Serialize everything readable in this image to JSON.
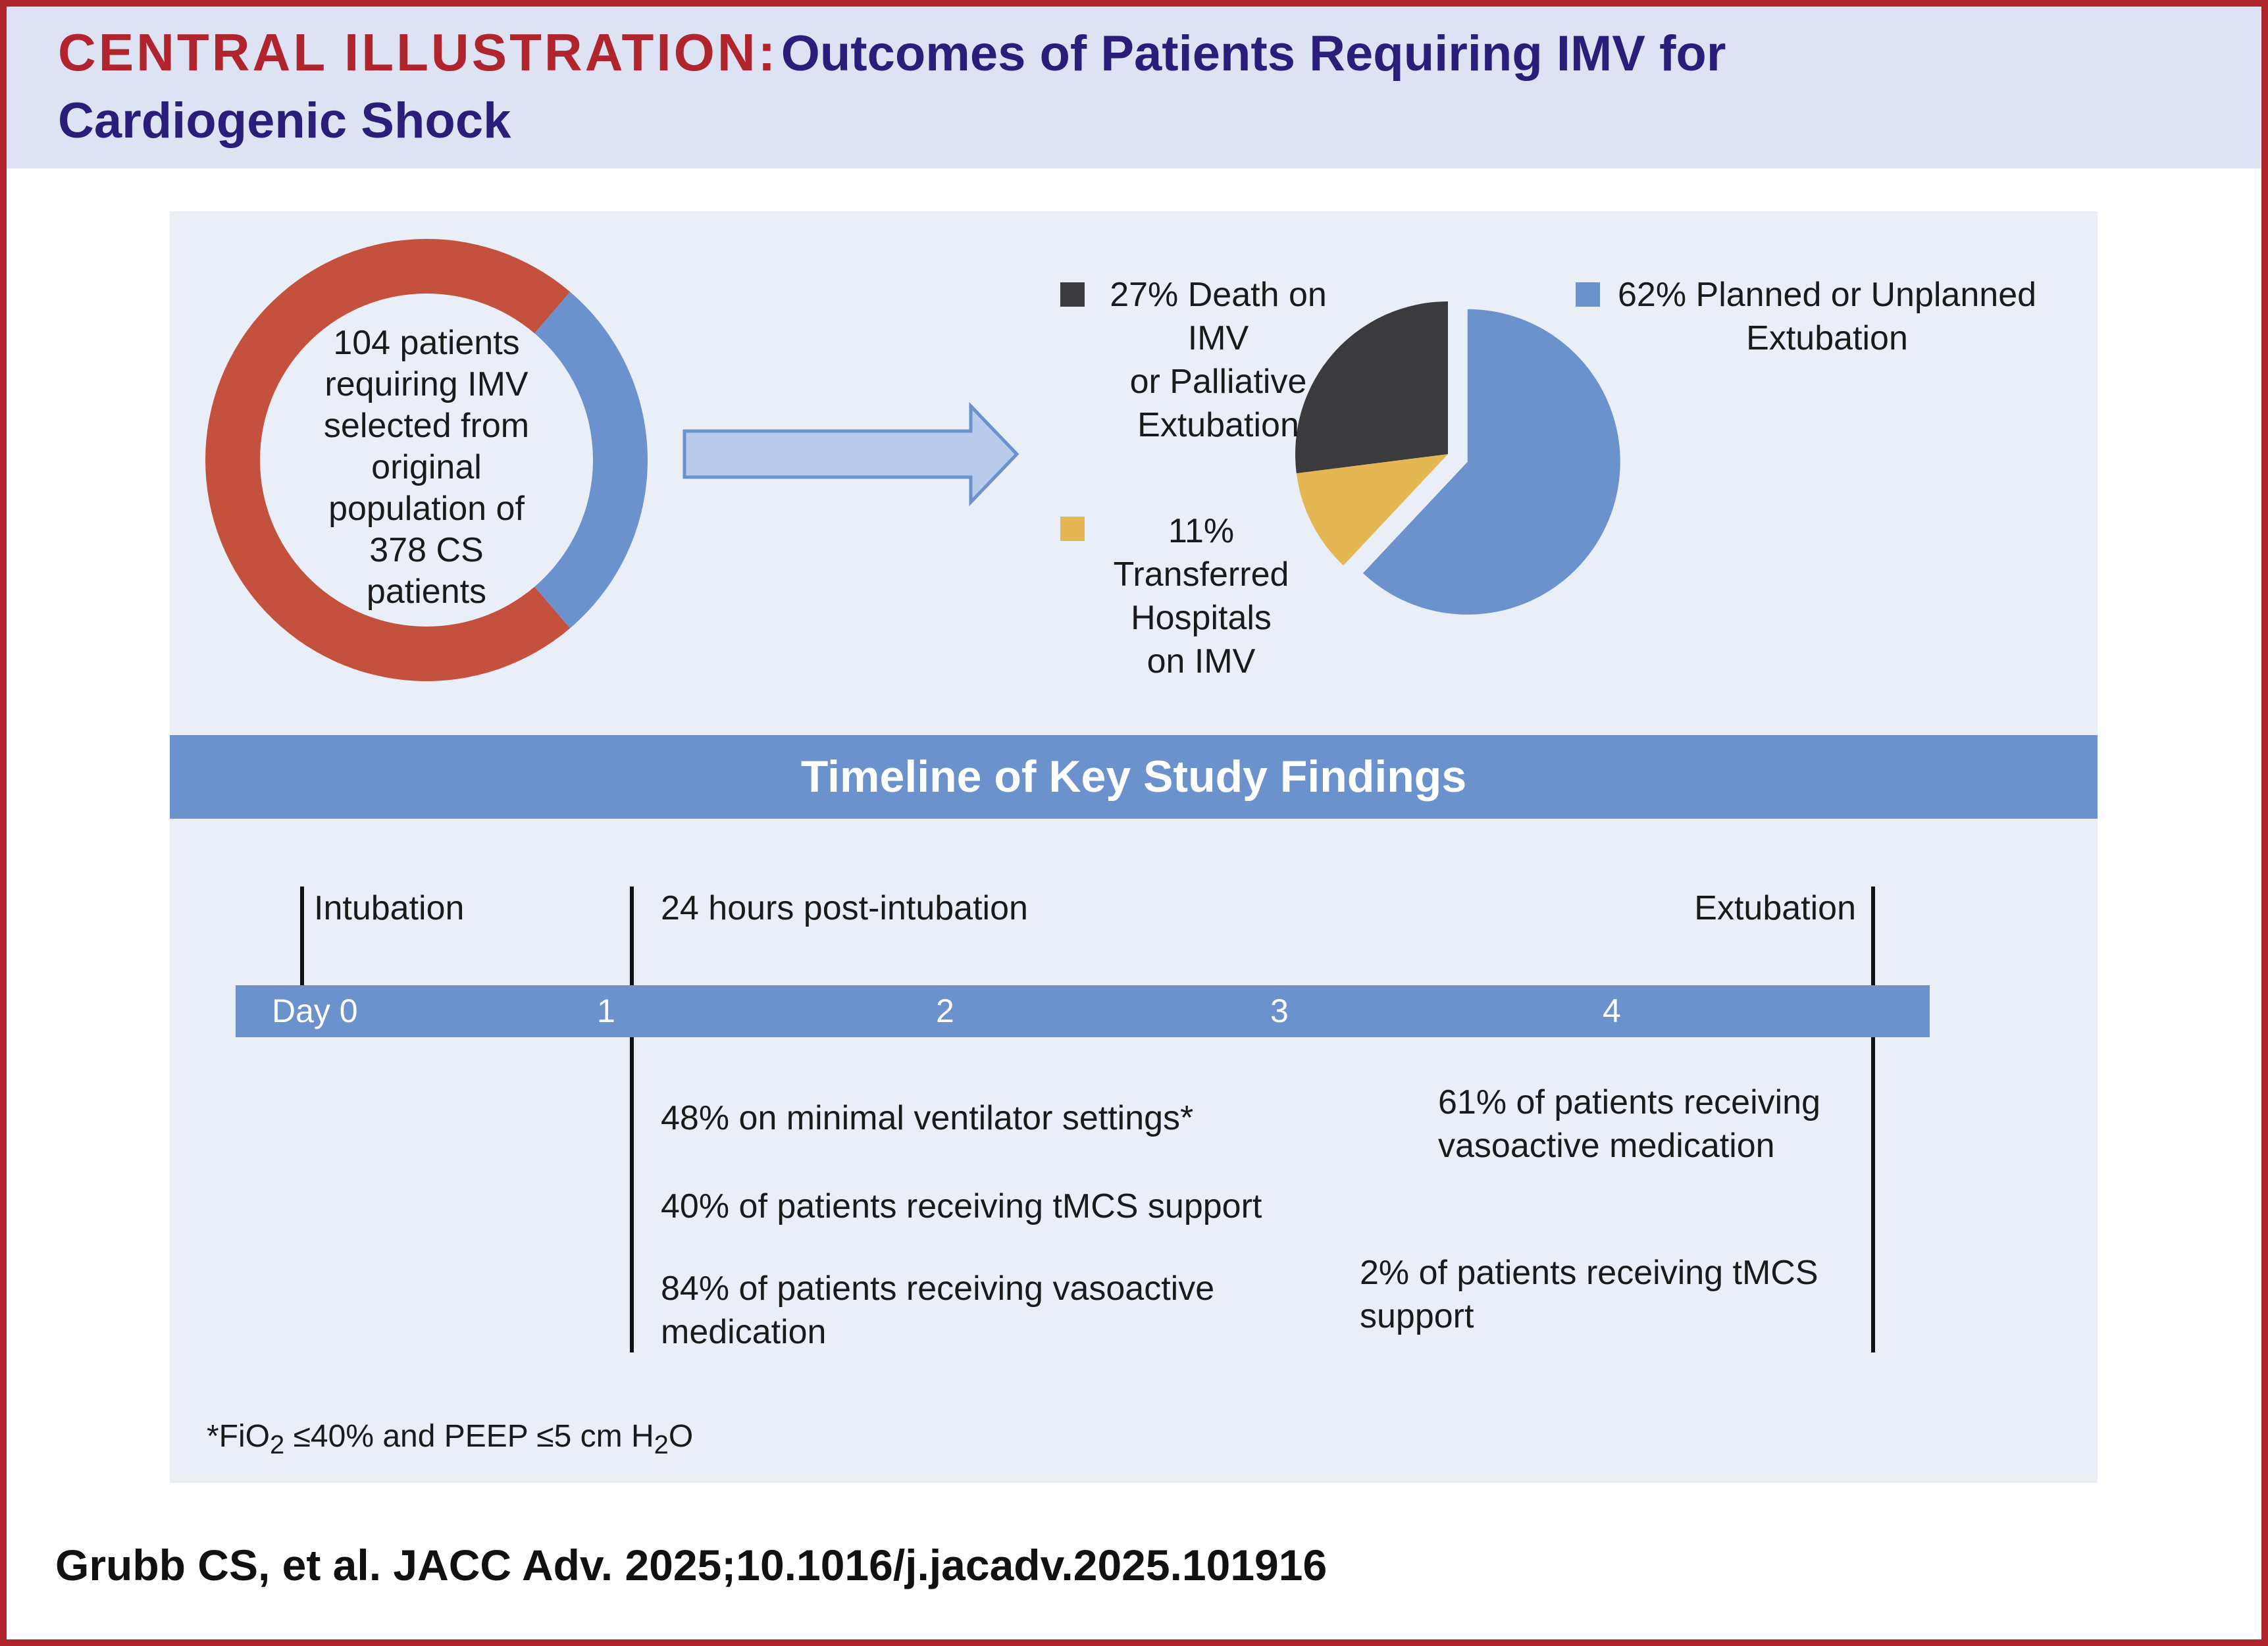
{
  "header": {
    "label": "CENTRAL ILLUSTRATION:",
    "title_line1": "Outcomes of Patients Requiring IMV for",
    "title_line2": "Cardiogenic Shock"
  },
  "donut": {
    "lines": [
      "104 patients",
      "requiring IMV",
      "selected from",
      "original",
      "population of",
      "378 CS",
      "patients"
    ],
    "selected": 104,
    "total": 378,
    "colors": {
      "selected": "#6b92cc",
      "rest": "#c4503e"
    }
  },
  "arrow": {
    "icon": "right-arrow-icon",
    "color": "#b8cbeb"
  },
  "chart_data": {
    "type": "pie",
    "slices": [
      {
        "label": "Planned or Unplanned Extubation",
        "value": 62,
        "color": "#6b92cc",
        "exploded": true
      },
      {
        "label": "Transferred Hospitals on IMV",
        "value": 11,
        "color": "#e5b752"
      },
      {
        "label": "Death on IMV or Palliative Extubation",
        "value": 27,
        "color": "#3b3b3e"
      }
    ]
  },
  "legend": {
    "death": [
      "27% Death on",
      "IMV",
      "or Palliative",
      "Extubation"
    ],
    "transferred": [
      "11%",
      "Transferred",
      "Hospitals",
      "on IMV"
    ],
    "extubation": [
      "62% Planned or Unplanned",
      "Extubation"
    ]
  },
  "timeline": {
    "banner": "Timeline of Key Study Findings",
    "events": {
      "intubation": "Intubation",
      "post24": "24 hours post-intubation",
      "extubation": "Extubation"
    },
    "ticks": [
      "Day 0",
      "1",
      "2",
      "3",
      "4"
    ],
    "findings_24h": [
      "48% on minimal ventilator settings*",
      "40% of patients receiving tMCS support",
      "84% of patients receiving vasoactive",
      "medication"
    ],
    "findings_extubation": [
      "61% of patients receiving",
      "vasoactive medication",
      "2% of patients receiving tMCS",
      "support"
    ],
    "footnote": {
      "a": "*FiO",
      "sub1": "2",
      "b": " ≤40% and PEEP ≤5 cm H",
      "sub2": "2",
      "c": "O"
    }
  },
  "citation": "Grubb CS, et al. JACC Adv. 2025;10.1016/j.jacadv.2025.101916"
}
